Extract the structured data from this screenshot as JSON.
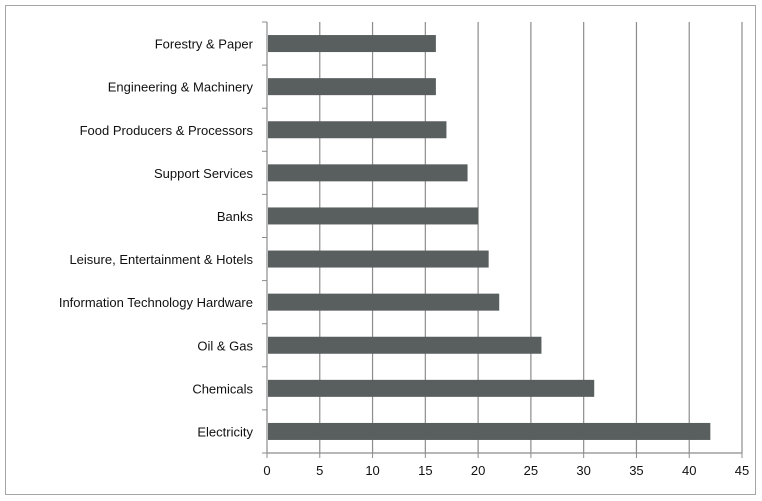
{
  "chart_data": {
    "type": "bar",
    "orientation": "horizontal",
    "title": "",
    "xlabel": "",
    "ylabel": "",
    "categories": [
      "Forestry & Paper",
      "Engineering & Machinery",
      "Food Producers & Processors",
      "Support Services",
      "Banks",
      "Leisure, Entertainment & Hotels",
      "Information Technology Hardware",
      "Oil & Gas",
      "Chemicals",
      "Electricity"
    ],
    "values": [
      16,
      16,
      17,
      19,
      20,
      21,
      22,
      26,
      31,
      42
    ],
    "xlim": [
      0,
      45
    ],
    "x_ticks": [
      "0",
      "5",
      "10",
      "15",
      "20",
      "25",
      "30",
      "35",
      "40",
      "45"
    ],
    "grid": "vertical",
    "legend": "none",
    "colors": {
      "bar": "#595f5f",
      "gridline": "#8c8c8c",
      "axis": "#8c8c8c",
      "frame": "#a6a6a6"
    }
  }
}
